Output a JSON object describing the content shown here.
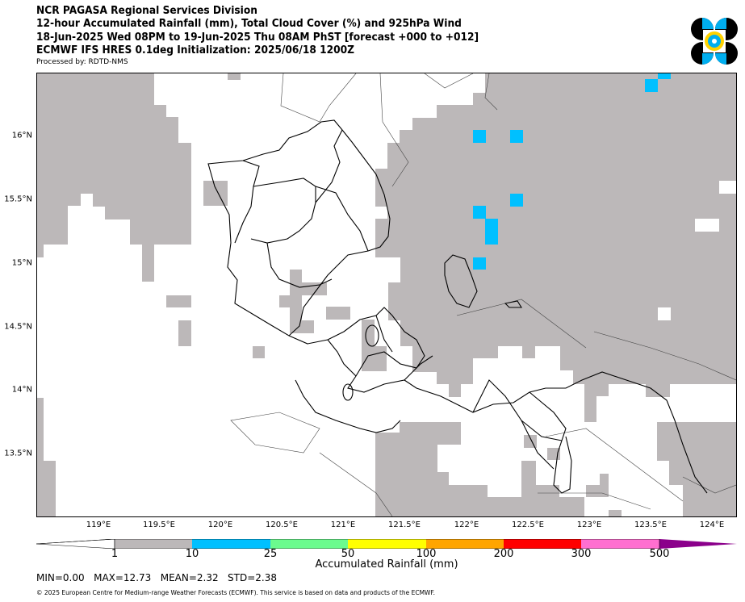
{
  "header": {
    "line1": "NCR PAGASA Regional Services Division",
    "line2": "12-hour Accumulated Rainfall (mm), Total Cloud Cover (%) and 925hPa Wind",
    "line3": "18-Jun-2025 Wed 08PM to 19-Jun-2025 Thu 08AM PhST [forecast +000 to +012]",
    "line4": "ECMWF IFS HRES 0.1deg Initialization: 2025/06/18 1200Z",
    "processed": "Processed by: RDTD-NMS"
  },
  "map": {
    "x_ticks": [
      "119°E",
      "119.5°E",
      "120°E",
      "120.5°E",
      "121°E",
      "121.5°E",
      "122°E",
      "122.5°E",
      "123°E",
      "123.5°E",
      "124°E"
    ],
    "y_ticks": [
      "16°N",
      "15.5°N",
      "15°N",
      "14.5°N",
      "14°N",
      "13.5°N"
    ],
    "extent": {
      "lon": [
        118.5,
        124.2
      ],
      "lat": [
        13.0,
        16.5
      ]
    },
    "cloud_color": "#bcb8b9",
    "rain_color": "#00c0ff"
  },
  "colorbar": {
    "title": "Accumulated Rainfall (mm)",
    "levels": [
      "1",
      "10",
      "25",
      "50",
      "100",
      "200",
      "300",
      "500"
    ],
    "colors": [
      "#bcb8b9",
      "#00c0ff",
      "#6bfb8e",
      "#ffff00",
      "#ffa500",
      "#ff0000",
      "#ff6fd0",
      "#8b008b"
    ]
  },
  "stats": "MIN=0.00   MAX=12.73   MEAN=2.32   STD=2.38",
  "copyright": "© 2025 European Centre for Medium-range Weather Forecasts (ECMWF). This service is based on data and products of the ECMWF."
}
